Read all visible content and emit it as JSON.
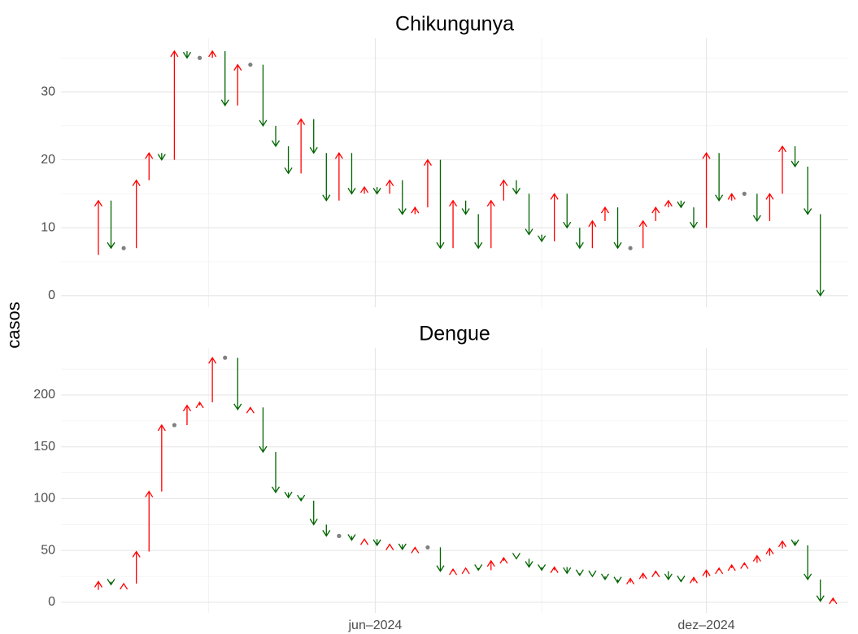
{
  "chart_data": [
    {
      "type": "arrow",
      "title": "Chikungunya",
      "x": [
        0,
        1,
        2,
        3,
        4,
        5,
        6,
        7,
        8,
        9,
        10,
        11,
        12,
        13,
        14,
        15,
        16,
        17,
        18,
        19,
        20,
        21,
        22,
        23,
        24,
        25,
        26,
        27,
        28,
        29,
        30,
        31,
        32,
        33,
        34,
        35,
        36,
        37,
        38,
        39,
        40,
        41,
        42,
        43,
        44,
        45,
        46,
        47,
        48,
        49,
        50,
        51,
        52,
        53,
        54,
        55,
        56,
        57,
        58
      ],
      "values": [
        6,
        14,
        7,
        7,
        17,
        21,
        20,
        36,
        35,
        35,
        36,
        28,
        34,
        34,
        25,
        22,
        18,
        26,
        21,
        14,
        21,
        15,
        16,
        15,
        17,
        12,
        13,
        20,
        7,
        14,
        12,
        7,
        14,
        17,
        15,
        9,
        8,
        15,
        10,
        7,
        11,
        13,
        7,
        7,
        11,
        13,
        14,
        13,
        10,
        21,
        14,
        15,
        15,
        11,
        15,
        22,
        19,
        12,
        0
      ],
      "ylim": [
        -1.7,
        37.9
      ],
      "yticks": [
        0,
        10,
        20,
        30
      ],
      "minor_yticks": [
        5,
        15,
        25,
        35
      ]
    },
    {
      "type": "arrow",
      "title": "Dengue",
      "x": [
        0,
        1,
        2,
        3,
        4,
        5,
        6,
        7,
        8,
        9,
        10,
        11,
        12,
        13,
        14,
        15,
        16,
        17,
        18,
        19,
        20,
        21,
        22,
        23,
        24,
        25,
        26,
        27,
        28,
        29,
        30,
        31,
        32,
        33,
        34,
        35,
        36,
        37,
        38,
        39,
        40,
        41,
        42,
        43,
        44,
        45,
        46,
        47,
        48,
        49,
        50,
        51,
        52,
        53,
        54,
        55,
        56,
        57,
        58,
        59
      ],
      "values": [
        12,
        20,
        17,
        18,
        49,
        107,
        171,
        171,
        190,
        193,
        236,
        236,
        186,
        188,
        145,
        106,
        101,
        98,
        75,
        64,
        64,
        60,
        61,
        55,
        56,
        51,
        53,
        53,
        30,
        32,
        33,
        31,
        40,
        43,
        42,
        34,
        31,
        34,
        28,
        26,
        25,
        22,
        19,
        23,
        28,
        30,
        22,
        20,
        24,
        31,
        33,
        36,
        38,
        45,
        52,
        59,
        55,
        22,
        1,
        4
      ],
      "ylim": [
        -10.2,
        245.5
      ],
      "yticks": [
        0,
        50,
        100,
        150,
        200
      ],
      "minor_yticks": [
        25,
        75,
        125,
        175,
        225
      ]
    }
  ],
  "shared": {
    "ylabel": "casos",
    "xlim": [
      -1.95,
      60.2
    ],
    "xticks": [
      {
        "value": 22.86,
        "label": "jun–2024"
      },
      {
        "value": 49,
        "label": "dez–2024"
      }
    ],
    "minor_xticks": [
      9.71,
      36
    ],
    "colors": {
      "up": "#ff0000",
      "down": "#006400",
      "same": "#808080"
    },
    "grid": true
  }
}
